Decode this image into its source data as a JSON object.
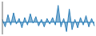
{
  "chart_data": {
    "type": "area",
    "values": [
      0.3,
      -0.5,
      0.8,
      -0.3,
      1.0,
      -0.2,
      0.4,
      -0.6,
      0.5,
      -0.3,
      0.9,
      -0.1,
      0.6,
      -0.4,
      0.3,
      -0.5,
      0.4,
      -0.2,
      0.5,
      -0.3,
      1.8,
      -0.5,
      0.4,
      -1.0,
      1.4,
      -0.8,
      0.3,
      -0.6,
      0.5,
      -0.3,
      0.7,
      -0.5,
      0.4,
      -0.4
    ],
    "color": "#2e7fb8",
    "ylim": [
      -1.3,
      2.2
    ],
    "baseline": 0,
    "tick_labels": false
  }
}
